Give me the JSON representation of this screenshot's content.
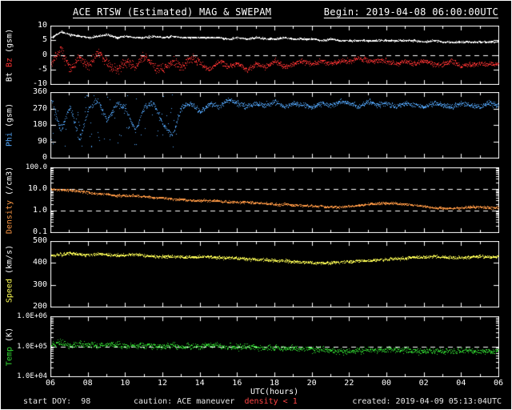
{
  "header": {
    "title": "ACE RTSW (Estimated) MAG & SWEPAM",
    "begin": "Begin: 2019-04-08 06:00:00UTC"
  },
  "footer": {
    "start_doy_label": "start DOY:",
    "start_doy_value": "98",
    "caution_label": "caution:",
    "caution_maneuver": "ACE maneuver",
    "caution_density": "density < 1",
    "created": "created: 2019-04-09 05:13:04UTC"
  },
  "colors": {
    "background": "#000000",
    "frame": "#ffffff",
    "bt": "#ffffff",
    "bz": "#ff3333",
    "phi": "#55aaff",
    "density": "#ff9944",
    "speed": "#ffff55",
    "temp": "#33dd33",
    "alert": "#ff4444"
  },
  "x_axis": {
    "label": "UTC(hours)",
    "range": [
      6,
      30
    ],
    "ticks": [
      6,
      8,
      10,
      12,
      14,
      16,
      18,
      20,
      22,
      24,
      26,
      28,
      30
    ],
    "tick_labels": [
      "06",
      "08",
      "10",
      "12",
      "14",
      "16",
      "18",
      "20",
      "22",
      "00",
      "02",
      "04",
      "06"
    ]
  },
  "x_anchors": [
    6,
    6.5,
    7,
    7.5,
    8,
    8.5,
    9,
    9.5,
    10,
    10.5,
    11,
    11.5,
    12,
    12.5,
    13,
    13.5,
    14,
    14.5,
    15,
    15.5,
    16,
    16.5,
    17,
    17.5,
    18,
    18.5,
    19,
    19.5,
    20,
    20.5,
    21,
    21.5,
    22,
    22.5,
    23,
    23.5,
    24,
    24.5,
    25,
    25.5,
    26,
    26.5,
    27,
    27.5,
    28,
    28.5,
    29,
    29.5,
    30
  ],
  "chart_data": [
    {
      "type": "scatter",
      "name": "mag",
      "title": "IMF Bt and Bz (GSM)",
      "scale": "linear",
      "ylim": [
        -10,
        10
      ],
      "yticks": [
        -10,
        -5,
        0,
        5,
        10
      ],
      "ytick_labels": [
        "-10",
        "-5",
        "0",
        "5",
        "10"
      ],
      "dashed": [
        0
      ],
      "label_parts": [
        {
          "text": "Bt ",
          "color": "#ffffff"
        },
        {
          "text": "Bz ",
          "color": "#ff3333"
        },
        {
          "text": "(gsm)",
          "color": "#ffffff"
        }
      ],
      "series": [
        {
          "name": "Bt",
          "color": "#ffffff",
          "values": [
            6,
            8,
            7,
            6.5,
            6,
            6.5,
            7,
            6,
            6.5,
            6,
            6,
            6.5,
            6,
            6.5,
            6,
            6,
            6,
            6,
            6,
            5.5,
            6,
            5.5,
            6,
            5.5,
            5.5,
            6,
            5.5,
            5.5,
            5.5,
            5,
            5.5,
            5,
            5,
            5,
            5,
            5,
            5,
            5,
            5,
            5,
            4.5,
            5,
            4.5,
            4.5,
            4.5,
            4.5,
            4.5,
            4.5,
            4.5
          ]
        },
        {
          "name": "Bz",
          "color": "#ff3333",
          "values": [
            -3,
            2,
            -5,
            -1,
            -4,
            1,
            -3,
            -5,
            -2,
            -4,
            0,
            -4,
            -5,
            -2,
            -4,
            -1,
            -3,
            -5,
            -2,
            -4,
            -3,
            -5,
            -3,
            -4,
            -2,
            -4,
            -3,
            -2,
            -3,
            -2,
            -3,
            -2,
            -2,
            -1,
            -2,
            -2,
            -2,
            -3,
            -2,
            -3,
            -2,
            -3,
            -3,
            -2,
            -4,
            -3,
            -3,
            -3,
            -3
          ]
        }
      ]
    },
    {
      "type": "scatter",
      "name": "phi",
      "title": "IMF Phi angle (GSM)",
      "scale": "linear",
      "ylim": [
        0,
        360
      ],
      "yticks": [
        0,
        90,
        180,
        270,
        360
      ],
      "ytick_labels": [
        "0",
        "90",
        "180",
        "270",
        "360"
      ],
      "dashed": [],
      "label_parts": [
        {
          "text": "Phi ",
          "color": "#55aaff"
        },
        {
          "text": "(gsm)",
          "color": "#ffffff"
        }
      ],
      "series": [
        {
          "name": "Phi",
          "color": "#55aaff",
          "values": [
            320,
            150,
            280,
            100,
            270,
            320,
            200,
            300,
            270,
            150,
            280,
            300,
            180,
            120,
            280,
            300,
            250,
            300,
            280,
            320,
            300,
            280,
            300,
            290,
            310,
            280,
            300,
            290,
            280,
            300,
            290,
            310,
            300,
            280,
            310,
            290,
            300,
            280,
            300,
            290,
            280,
            300,
            290,
            280,
            300,
            290,
            280,
            300,
            290
          ]
        }
      ]
    },
    {
      "type": "scatter",
      "name": "density",
      "title": "Proton density (/cm3)",
      "scale": "log",
      "ylim": [
        0.1,
        100
      ],
      "yticks": [
        0.1,
        1,
        10,
        100
      ],
      "ytick_labels": [
        "0.1",
        "1.0",
        "10.0",
        "100.0"
      ],
      "dashed": [
        1,
        10
      ],
      "label_parts": [
        {
          "text": "Density ",
          "color": "#ff9944"
        },
        {
          "text": "(/cm3)",
          "color": "#ffffff"
        }
      ],
      "series": [
        {
          "name": "Density",
          "color": "#ff9944",
          "values": [
            10,
            9,
            9,
            8,
            7,
            6,
            6,
            5,
            5,
            5,
            4.5,
            4,
            4,
            3.5,
            3.5,
            3,
            3,
            3,
            2.8,
            2.6,
            2.5,
            2.5,
            2.3,
            2.2,
            2,
            2,
            1.8,
            1.8,
            1.7,
            1.6,
            1.5,
            1.5,
            1.6,
            1.8,
            2,
            2.2,
            2.3,
            2.2,
            2,
            1.8,
            1.6,
            1.4,
            1.3,
            1.3,
            1.4,
            1.5,
            1.5,
            1.4,
            1.4
          ]
        }
      ]
    },
    {
      "type": "scatter",
      "name": "speed",
      "title": "Solar wind speed (km/s)",
      "scale": "linear",
      "ylim": [
        200,
        500
      ],
      "yticks": [
        200,
        300,
        400,
        500
      ],
      "ytick_labels": [
        "200",
        "300",
        "400",
        "500"
      ],
      "dashed": [],
      "label_parts": [
        {
          "text": "Speed ",
          "color": "#ffff55"
        },
        {
          "text": "(km/s)",
          "color": "#ffffff"
        }
      ],
      "series": [
        {
          "name": "Speed",
          "color": "#ffff55",
          "values": [
            435,
            440,
            445,
            440,
            438,
            442,
            440,
            435,
            438,
            440,
            435,
            432,
            430,
            432,
            430,
            428,
            430,
            428,
            425,
            425,
            422,
            420,
            418,
            415,
            412,
            410,
            408,
            405,
            402,
            400,
            402,
            405,
            408,
            410,
            412,
            415,
            418,
            420,
            422,
            425,
            428,
            430,
            428,
            426,
            425,
            428,
            430,
            428,
            430
          ]
        }
      ]
    },
    {
      "type": "scatter",
      "name": "temp",
      "title": "Ion temperature (K)",
      "scale": "log",
      "ylim": [
        10000,
        1000000
      ],
      "yticks": [
        10000,
        100000,
        1000000
      ],
      "ytick_labels": [
        "1.0E+04",
        "1.0E+05",
        "1.0E+06"
      ],
      "dashed": [
        100000
      ],
      "label_parts": [
        {
          "text": "Temp ",
          "color": "#33dd33"
        },
        {
          "text": "(K)",
          "color": "#ffffff"
        }
      ],
      "series": [
        {
          "name": "Temp",
          "color": "#33dd33",
          "values": [
            120000,
            130000,
            110000,
            120000,
            115000,
            105000,
            110000,
            120000,
            105000,
            100000,
            110000,
            105000,
            100000,
            110000,
            95000,
            105000,
            100000,
            110000,
            105000,
            100000,
            95000,
            100000,
            95000,
            90000,
            92000,
            88000,
            85000,
            82000,
            80000,
            78000,
            75000,
            72000,
            70000,
            72000,
            75000,
            78000,
            80000,
            78000,
            75000,
            72000,
            70000,
            72000,
            70000,
            72000,
            74000,
            72000,
            70000,
            72000,
            72000
          ]
        }
      ]
    }
  ]
}
